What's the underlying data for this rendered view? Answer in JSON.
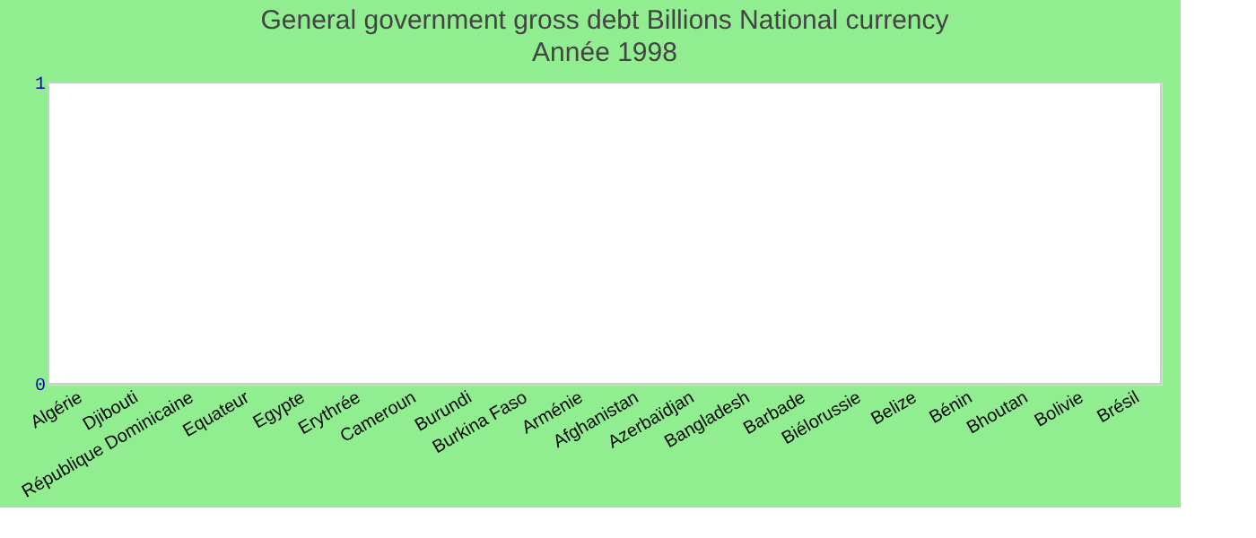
{
  "chart_data": {
    "type": "bar",
    "title": "General government gross debt Billions National currency",
    "subtitle": "Année 1998",
    "categories": [
      "Algérie",
      "Djibouti",
      "République Dominicaine",
      "Equateur",
      "Egypte",
      "Erythrée",
      "Cameroun",
      "Burundi",
      "Burkina Faso",
      "Arménie",
      "Afghanistan",
      "Azerbaïdjan",
      "Bangladesh",
      "Barbade",
      "Biélorussie",
      "Belize",
      "Bénin",
      "Bhoutan",
      "Bolivie",
      "Brésil"
    ],
    "values": [
      0,
      0,
      0,
      0,
      0,
      0,
      0,
      0,
      0,
      0,
      0,
      0,
      0,
      0,
      0,
      0,
      0,
      0,
      0,
      0
    ],
    "ylim": [
      0,
      1
    ],
    "yticks": [
      0,
      1
    ]
  }
}
